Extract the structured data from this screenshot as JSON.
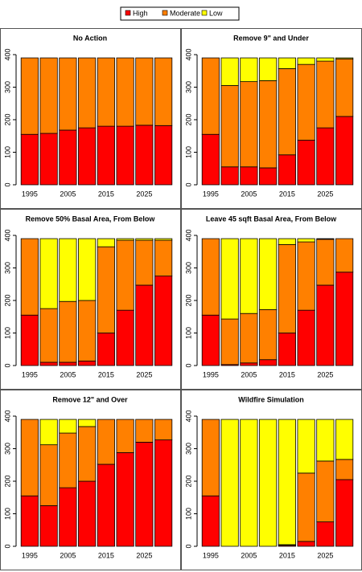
{
  "legend": {
    "names": [
      "High",
      "Moderate",
      "Low"
    ],
    "colors": [
      "#ff0000",
      "#ff8000",
      "#ffff00"
    ]
  },
  "chart_data": [
    {
      "type": "bar",
      "stacked": true,
      "title": "No Action",
      "categories": [
        "1995",
        null,
        "2005",
        null,
        "2015",
        null,
        "2025",
        null
      ],
      "series": [
        {
          "values": [
            155,
            158,
            168,
            175,
            180,
            180,
            183,
            182
          ]
        },
        {
          "values": [
            235,
            232,
            222,
            215,
            210,
            210,
            207,
            208
          ]
        },
        {
          "values": [
            0,
            0,
            0,
            0,
            0,
            0,
            0,
            0
          ]
        }
      ],
      "ylim": [
        0,
        400
      ],
      "yticks": [
        0,
        100,
        200,
        300,
        400
      ]
    },
    {
      "type": "bar",
      "stacked": true,
      "title": "Remove 9\" and Under",
      "categories": [
        "1995",
        null,
        "2005",
        null,
        "2015",
        null,
        "2025",
        null
      ],
      "series": [
        {
          "values": [
            155,
            55,
            55,
            52,
            92,
            137,
            175,
            210
          ]
        },
        {
          "values": [
            235,
            250,
            262,
            268,
            265,
            233,
            205,
            177
          ]
        },
        {
          "values": [
            0,
            85,
            73,
            70,
            33,
            20,
            10,
            3
          ]
        }
      ],
      "ylim": [
        0,
        400
      ],
      "yticks": [
        0,
        100,
        200,
        300,
        400
      ]
    },
    {
      "type": "bar",
      "stacked": true,
      "title": "Remove 50% Basal Area, From Below",
      "categories": [
        "1995",
        null,
        "2005",
        null,
        "2015",
        null,
        "2025",
        null
      ],
      "series": [
        {
          "values": [
            155,
            10,
            10,
            14,
            100,
            170,
            247,
            275
          ]
        },
        {
          "values": [
            235,
            165,
            187,
            186,
            265,
            215,
            138,
            110
          ]
        },
        {
          "values": [
            0,
            215,
            193,
            190,
            25,
            5,
            5,
            5
          ]
        }
      ],
      "ylim": [
        0,
        400
      ],
      "yticks": [
        0,
        100,
        200,
        300,
        400
      ]
    },
    {
      "type": "bar",
      "stacked": true,
      "title": "Leave 45 sqft Basal Area, From Below",
      "categories": [
        "1995",
        null,
        "2005",
        null,
        "2015",
        null,
        "2025",
        null
      ],
      "series": [
        {
          "values": [
            155,
            3,
            8,
            18,
            100,
            170,
            247,
            287
          ]
        },
        {
          "values": [
            235,
            140,
            152,
            154,
            272,
            210,
            141,
            103
          ]
        },
        {
          "values": [
            0,
            247,
            230,
            218,
            18,
            10,
            2,
            0
          ]
        }
      ],
      "ylim": [
        0,
        400
      ],
      "yticks": [
        0,
        100,
        200,
        300,
        400
      ]
    },
    {
      "type": "bar",
      "stacked": true,
      "title": "Remove 12\" and Over",
      "categories": [
        "1995",
        null,
        "2005",
        null,
        "2015",
        null,
        "2025",
        null
      ],
      "series": [
        {
          "values": [
            155,
            125,
            180,
            200,
            252,
            288,
            320,
            327
          ]
        },
        {
          "values": [
            235,
            187,
            168,
            168,
            138,
            102,
            70,
            63
          ]
        },
        {
          "values": [
            0,
            78,
            42,
            22,
            0,
            0,
            0,
            0
          ]
        }
      ],
      "ylim": [
        0,
        400
      ],
      "yticks": [
        0,
        100,
        200,
        300,
        400
      ]
    },
    {
      "type": "bar",
      "stacked": true,
      "title": "Wildfire Simulation",
      "categories": [
        "1995",
        null,
        "2005",
        null,
        "2015",
        null,
        "2025",
        null
      ],
      "series": [
        {
          "values": [
            155,
            0,
            0,
            0,
            3,
            15,
            75,
            205
          ]
        },
        {
          "values": [
            235,
            0,
            0,
            0,
            2,
            210,
            187,
            62
          ]
        },
        {
          "values": [
            0,
            390,
            390,
            390,
            385,
            165,
            128,
            123
          ]
        }
      ],
      "ylim": [
        0,
        400
      ],
      "yticks": [
        0,
        100,
        200,
        300,
        400
      ]
    }
  ]
}
